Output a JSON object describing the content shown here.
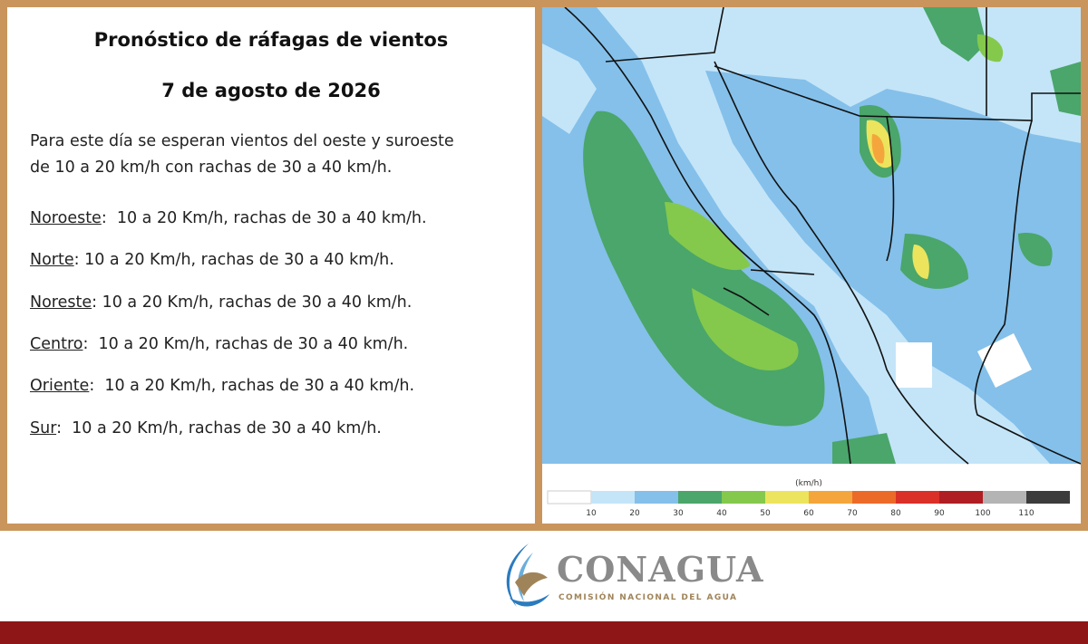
{
  "header": {
    "title": "Pronóstico de ráfagas de vientos",
    "date": "7 de agosto de 2026"
  },
  "intro": [
    "Para este día se esperan vientos del oeste y suroeste",
    "de 10 a 20 km/h con rachas de 30 a 40 km/h."
  ],
  "regions": [
    {
      "name": "Noroeste",
      "text": ":  10 a 20 Km/h, rachas de 30 a 40 km/h."
    },
    {
      "name": "Norte",
      "text": ": 10 a 20 Km/h, rachas de 30 a 40 km/h."
    },
    {
      "name": "Noreste",
      "text": ": 10 a 20 Km/h, rachas de 30 a 40 km/h."
    },
    {
      "name": "Centro",
      "text": ":  10 a 20 Km/h, rachas de 30 a 40 km/h."
    },
    {
      "name": "Oriente",
      "text": ":  10 a 20 Km/h, rachas de 30 a 40 km/h."
    },
    {
      "name": "Sur",
      "text": ":  10 a 20 Km/h, rachas de 30 a 40 km/h."
    }
  ],
  "legend": {
    "unit": "(km/h)",
    "ticks": [
      10,
      20,
      30,
      40,
      50,
      60,
      70,
      80,
      90,
      100,
      110
    ],
    "colors": [
      "#ffffff",
      "#c4e5f8",
      "#84c0ea",
      "#4aa66a",
      "#84c94c",
      "#ece45c",
      "#f4a63c",
      "#ec6a28",
      "#da3028",
      "#b01e23",
      "#b4b4b4",
      "#3c3c3c"
    ]
  },
  "logo": {
    "name": "CONAGUA",
    "subtitle": "COMISIÓN NACIONAL DEL AGUA"
  }
}
